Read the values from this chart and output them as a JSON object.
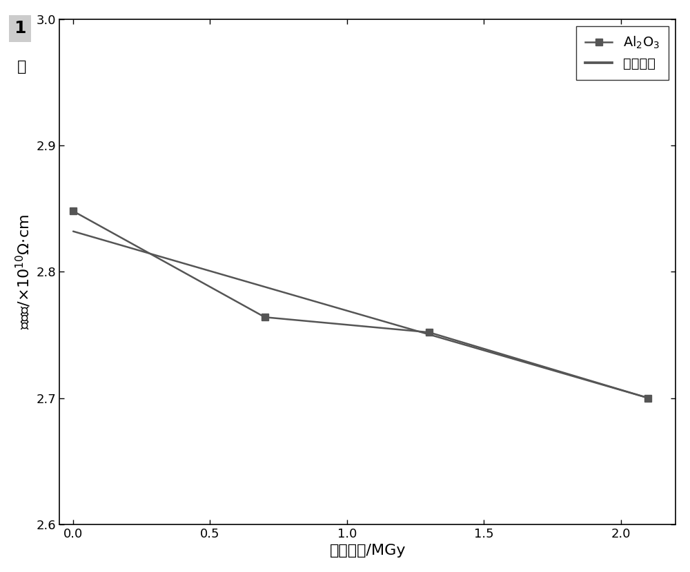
{
  "title": "",
  "xlabel": "迍射剂量/MGy",
  "xlim": [
    -0.05,
    2.2
  ],
  "ylim": [
    2.6,
    3.0
  ],
  "xticks": [
    0.0,
    0.5,
    1.0,
    1.5,
    2.0
  ],
  "yticks": [
    2.6,
    2.7,
    2.8,
    2.9,
    3.0
  ],
  "data_x": [
    0.0,
    0.7,
    1.3,
    2.1
  ],
  "data_y": [
    2.848,
    2.764,
    2.752,
    2.7
  ],
  "fit_x": [
    0.0,
    2.1
  ],
  "fit_y": [
    2.832,
    2.7
  ],
  "data_color": "#555555",
  "fit_color": "#555555",
  "marker": "s",
  "linewidth": 1.8,
  "markersize": 7,
  "background_color": "#ffffff",
  "border_color": "#000000",
  "font_size_axis_label": 16,
  "font_size_tick": 13,
  "font_size_legend": 14,
  "panel_label": "1",
  "figsize": [
    10.0,
    8.3
  ],
  "dpi": 100
}
